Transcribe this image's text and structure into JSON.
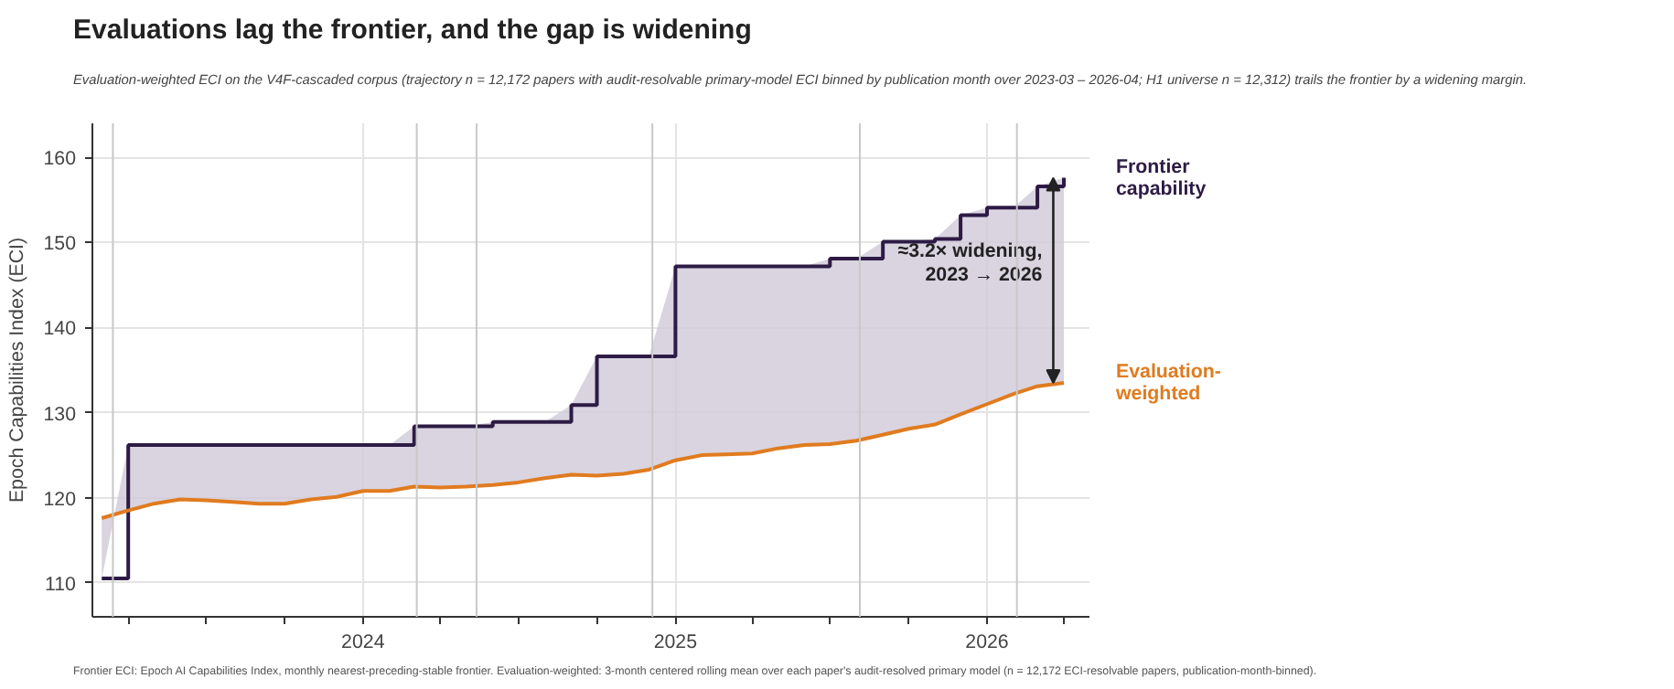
{
  "chart_data": {
    "type": "step",
    "title": "Evaluations lag the frontier, and the gap is widening",
    "subtitle": "Evaluation-weighted ECI on the V4F-cascaded corpus (trajectory n = 12,172 papers with audit-resolvable primary-model ECI binned by publication month over 2023-03 – 2026-04; H1 universe n = 12,312) trails the frontier by a widening margin.",
    "ylabel": "Epoch Capabilities Index (ECI)",
    "x": [
      "2023-03",
      "2023-04",
      "2023-05",
      "2023-06",
      "2023-07",
      "2023-08",
      "2023-09",
      "2023-10",
      "2023-11",
      "2023-12",
      "2024-01",
      "2024-02",
      "2024-03",
      "2024-04",
      "2024-05",
      "2024-06",
      "2024-07",
      "2024-08",
      "2024-09",
      "2024-10",
      "2024-11",
      "2024-12",
      "2025-01",
      "2025-02",
      "2025-03",
      "2025-04",
      "2025-05",
      "2025-06",
      "2025-07",
      "2025-08",
      "2025-09",
      "2025-10",
      "2025-11",
      "2025-12",
      "2026-01",
      "2026-02",
      "2026-03",
      "2026-04"
    ],
    "series": [
      {
        "name": "Frontier capability",
        "color": "#2d1b45",
        "values": [
          110.5,
          126.2,
          126.2,
          126.2,
          126.2,
          126.2,
          126.2,
          126.2,
          126.2,
          126.2,
          126.2,
          126.2,
          128.4,
          128.4,
          128.4,
          128.9,
          128.9,
          128.9,
          130.9,
          136.6,
          136.6,
          136.6,
          147.2,
          147.2,
          147.2,
          147.2,
          147.2,
          147.2,
          148.1,
          148.1,
          150.1,
          150.1,
          150.4,
          153.2,
          154.1,
          154.1,
          156.6,
          157.6
        ],
        "lower": [
          117.6,
          118.5,
          119.3,
          119.8,
          119.7,
          119.5,
          119.3,
          119.3,
          119.8,
          120.1,
          120.8,
          120.8,
          121.3,
          121.2,
          121.3,
          121.5,
          121.8,
          122.3,
          122.7,
          122.6,
          122.8,
          123.3,
          124.4,
          125.0,
          125.1,
          125.2,
          125.8,
          126.2,
          126.3,
          126.7,
          127.4,
          128.1,
          128.6,
          129.8,
          131.0,
          132.2,
          133.1,
          133.5
        ],
        "upper": [
          110.5,
          126.2,
          126.2,
          126.2,
          126.2,
          126.2,
          126.2,
          126.2,
          126.2,
          126.2,
          126.2,
          126.2,
          128.4,
          128.4,
          128.4,
          128.9,
          128.9,
          128.9,
          130.9,
          136.6,
          136.6,
          136.6,
          147.2,
          147.2,
          147.2,
          147.2,
          147.2,
          147.2,
          148.1,
          148.1,
          150.1,
          150.1,
          150.4,
          153.2,
          154.1,
          154.1,
          156.6,
          157.6
        ]
      },
      {
        "name": "Evaluation-weighted",
        "type": "line",
        "color": "#e07b1f",
        "values": [
          117.6,
          118.5,
          119.3,
          119.8,
          119.7,
          119.5,
          119.3,
          119.3,
          119.8,
          120.1,
          120.8,
          120.8,
          121.3,
          121.2,
          121.3,
          121.5,
          121.8,
          122.3,
          122.7,
          122.6,
          122.8,
          123.3,
          124.4,
          125.0,
          125.1,
          125.2,
          125.8,
          126.2,
          126.3,
          126.7,
          127.4,
          128.1,
          128.6,
          129.8,
          131.0,
          132.2,
          133.1,
          133.5
        ]
      }
    ],
    "xlim": [
      "2023-02-18",
      "2026-05-01"
    ],
    "ylim": [
      106,
      164
    ],
    "xticks": [
      {
        "value": "2023-04-01",
        "label": null
      },
      {
        "value": "2023-07-01",
        "label": null
      },
      {
        "value": "2023-10-01",
        "label": null
      },
      {
        "value": "2024-01-01",
        "label": "2024"
      },
      {
        "value": "2024-04-01",
        "label": null
      },
      {
        "value": "2024-07-01",
        "label": null
      },
      {
        "value": "2024-10-01",
        "label": null
      },
      {
        "value": "2025-01-01",
        "label": "2025"
      },
      {
        "value": "2025-04-01",
        "label": null
      },
      {
        "value": "2025-07-01",
        "label": null
      },
      {
        "value": "2025-10-01",
        "label": null
      },
      {
        "value": "2026-01-01",
        "label": "2026"
      },
      {
        "value": "2026-04-01",
        "label": null
      }
    ],
    "yticks": [
      110,
      120,
      130,
      140,
      150,
      160
    ],
    "ref_lines": [
      {
        "axis": "x",
        "value": "2023-03-14",
        "color": "#c8c8c8"
      },
      {
        "axis": "x",
        "value": "2024-03-04",
        "color": "#c8c8c8"
      },
      {
        "axis": "x",
        "value": "2024-05-13",
        "color": "#c8c8c8"
      },
      {
        "axis": "x",
        "value": "2024-12-05",
        "color": "#c8c8c8"
      },
      {
        "axis": "x",
        "value": "2025-08-05",
        "color": "#c8c8c8"
      },
      {
        "axis": "x",
        "value": "2026-02-05",
        "color": "#c8c8c8"
      }
    ],
    "annotations": [
      "≈3.2× widening,\n2023 → 2026",
      "Frontier ECI: Epoch AI Capabilities Index, monthly nearest-preceding-stable frontier. Evaluation-weighted: 3-month centered rolling mean over each paper's audit-resolved primary model (n = 12,172 ECI-resolvable papers, publication-month-binned)."
    ],
    "grid": true,
    "legend": false
  }
}
